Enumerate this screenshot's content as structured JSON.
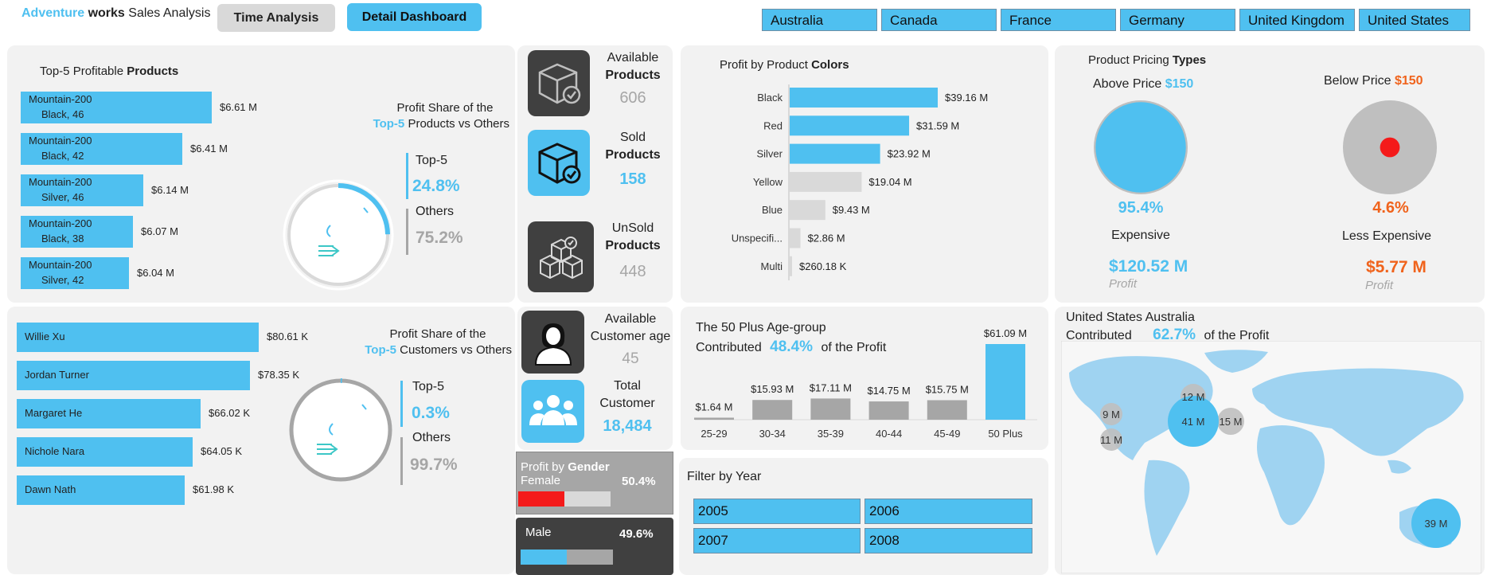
{
  "header": {
    "brand_part1": "Adventure",
    "brand_part2": "works",
    "brand_part3": "Sales Analysis",
    "tab_time": "Time Analysis",
    "tab_detail": "Detail Dashboard",
    "countries": [
      "Australia",
      "Canada",
      "France",
      "Germany",
      "United Kingdom",
      "United States"
    ]
  },
  "top_products": {
    "title_plain": "Top-5 Profitable",
    "title_bold": "Products",
    "items": [
      {
        "line1": "Mountain-200",
        "line2": "Black, 46",
        "value": "$6.61 M",
        "v": 6.61
      },
      {
        "line1": "Mountain-200",
        "line2": "Black, 42",
        "value": "$6.41 M",
        "v": 6.41
      },
      {
        "line1": "Mountain-200",
        "line2": "Silver, 46",
        "value": "$6.14 M",
        "v": 6.14
      },
      {
        "line1": "Mountain-200",
        "line2": "Black, 38",
        "value": "$6.07 M",
        "v": 6.07
      },
      {
        "line1": "Mountain-200",
        "line2": "Silver, 42",
        "value": "$6.04 M",
        "v": 6.04
      }
    ],
    "share_title1": "Profit Share of the",
    "share_title2a": "Top-5",
    "share_title2b": "Products vs Others",
    "top5_label": "Top-5",
    "top5_pct": "24.8%",
    "others_label": "Others",
    "others_pct": "75.2%",
    "top5_share": 0.248
  },
  "top_customers": {
    "items": [
      {
        "name": "Willie Xu",
        "value": "$80.61 K",
        "v": 80.61
      },
      {
        "name": "Jordan Turner",
        "value": "$78.35 K",
        "v": 78.35
      },
      {
        "name": "Margaret He",
        "value": "$66.02 K",
        "v": 66.02
      },
      {
        "name": "Nichole Nara",
        "value": "$64.05 K",
        "v": 64.05
      },
      {
        "name": "Dawn Nath",
        "value": "$61.98 K",
        "v": 61.98
      }
    ],
    "share_title1": "Profit Share of the",
    "share_title2a": "Top-5",
    "share_title2b": "Customers vs Others",
    "top5_label": "Top-5",
    "top5_pct": "0.3%",
    "others_label": "Others",
    "others_pct": "99.7%",
    "top5_share": 0.003
  },
  "kpis": {
    "available_products_l1": "Available",
    "available_products_l2": "Products",
    "available_products_val": "606",
    "sold_products_l1": "Sold",
    "sold_products_l2": "Products",
    "sold_products_val": "158",
    "unsold_products_l1": "UnSold",
    "unsold_products_l2": "Products",
    "unsold_products_val": "448",
    "customer_age_l1": "Available",
    "customer_age_l2": "Customer age",
    "customer_age_val": "45",
    "total_customer_l1": "Total",
    "total_customer_l2": "Customer",
    "total_customer_val": "18,484"
  },
  "gender": {
    "title_plain": "Profit by",
    "title_bold": "Gender",
    "female_label": "Female",
    "female_pct": "50.4%",
    "female_share": 0.504,
    "male_label": "Male",
    "male_pct": "49.6%",
    "male_share": 0.496,
    "female_color": "#f41a1a",
    "male_color": "#4fc0f0"
  },
  "colors_chart": {
    "title_plain": "Profit by Product",
    "title_bold": "Colors"
  },
  "age_chart": {
    "line1": "The 50 Plus Age-group",
    "line2a": "Contributed",
    "line2b": "48.4%",
    "line2c": "of the Profit"
  },
  "pricing": {
    "title_plain": "Product Pricing",
    "title_bold": "Types",
    "above_label": "Above Price",
    "above_price": "$150",
    "above_pct": "95.4%",
    "above_share": 0.954,
    "above_name": "Expensive",
    "above_profit": "$120.52 M",
    "profit_word": "Profit",
    "below_label": "Below Price",
    "below_price": "$150",
    "below_pct": "4.6%",
    "below_share": 0.046,
    "below_name": "Less Expensive",
    "below_profit": "$5.77 M"
  },
  "map": {
    "line1": "United States Australia",
    "line2a": "Contributed",
    "line2b": "62.7%",
    "line2c": "of the Profit",
    "bubbles": [
      "12 M",
      "9 M",
      "41 M",
      "15 M",
      "11 M",
      "39 M"
    ]
  },
  "year_filter": {
    "title": "Filter by Year",
    "years": [
      "2005",
      "2006",
      "2007",
      "2008"
    ]
  },
  "chart_data": [
    {
      "type": "bar",
      "title": "Profit by Product Colors",
      "categories": [
        "Black",
        "Red",
        "Silver",
        "Yellow",
        "Blue",
        "Unspecifi...",
        "Multi"
      ],
      "values": [
        39.16,
        31.59,
        23.92,
        19.04,
        9.43,
        2.86,
        0.26018
      ],
      "labels": [
        "$39.16 M",
        "$31.59 M",
        "$23.92 M",
        "$19.04 M",
        "$9.43 M",
        "$2.86 M",
        "$260.18 K"
      ],
      "highlight": [
        true,
        true,
        true,
        false,
        false,
        false,
        false
      ],
      "orientation": "horizontal",
      "xlabel": "",
      "ylabel": ""
    },
    {
      "type": "bar",
      "title": "The 50 Plus Age-group Contributed 48.4% of the Profit",
      "categories": [
        "25-29",
        "30-34",
        "35-39",
        "40-44",
        "45-49",
        "50 Plus"
      ],
      "values": [
        1.64,
        15.93,
        17.11,
        14.75,
        15.75,
        61.09
      ],
      "labels": [
        "$1.64 M",
        "$15.93 M",
        "$17.11 M",
        "$14.75 M",
        "$15.75 M",
        "$61.09 M"
      ],
      "highlight": [
        false,
        false,
        false,
        false,
        false,
        true
      ],
      "orientation": "vertical",
      "xlabel": "",
      "ylabel": ""
    }
  ]
}
